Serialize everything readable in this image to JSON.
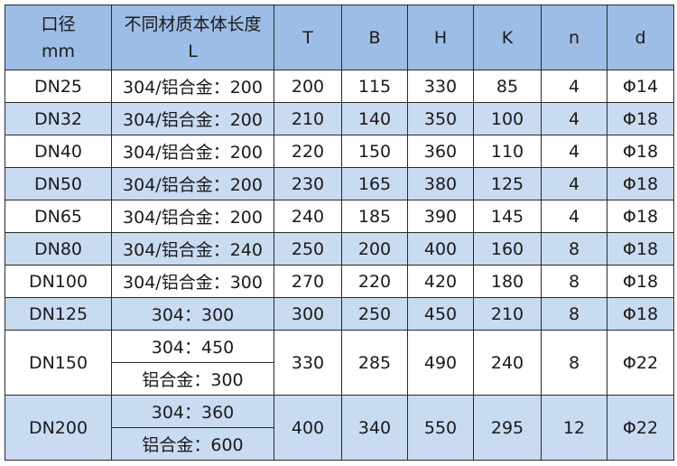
{
  "headers": [
    {
      "line1": "口径",
      "line2": "mm"
    },
    {
      "line1": "不同材质本体长度",
      "line2": "L"
    },
    {
      "line1": "T",
      "line2": ""
    },
    {
      "line1": "B",
      "line2": ""
    },
    {
      "line1": "H",
      "line2": ""
    },
    {
      "line1": "K",
      "line2": ""
    },
    {
      "line1": "n",
      "line2": ""
    },
    {
      "line1": "d",
      "line2": ""
    }
  ],
  "rows": [
    {
      "dn": "DN25",
      "L": [
        "304/铝合金：200"
      ],
      "T": "200",
      "B": "115",
      "H": "330",
      "K": "85",
      "n": "4",
      "d": "Φ14"
    },
    {
      "dn": "DN32",
      "L": [
        "304/铝合金：200"
      ],
      "T": "210",
      "B": "140",
      "H": "350",
      "K": "100",
      "n": "4",
      "d": "Φ18"
    },
    {
      "dn": "DN40",
      "L": [
        "304/铝合金：200"
      ],
      "T": "220",
      "B": "150",
      "H": "360",
      "K": "110",
      "n": "4",
      "d": "Φ18"
    },
    {
      "dn": "DN50",
      "L": [
        "304/铝合金：200"
      ],
      "T": "230",
      "B": "165",
      "H": "380",
      "K": "125",
      "n": "4",
      "d": "Φ18"
    },
    {
      "dn": "DN65",
      "L": [
        "304/铝合金：200"
      ],
      "T": "240",
      "B": "185",
      "H": "390",
      "K": "145",
      "n": "4",
      "d": "Φ18"
    },
    {
      "dn": "DN80",
      "L": [
        "304/铝合金：240"
      ],
      "T": "250",
      "B": "200",
      "H": "400",
      "K": "160",
      "n": "8",
      "d": "Φ18"
    },
    {
      "dn": "DN100",
      "L": [
        "304/铝合金：300"
      ],
      "T": "270",
      "B": "220",
      "H": "420",
      "K": "180",
      "n": "8",
      "d": "Φ18"
    },
    {
      "dn": "DN125",
      "L": [
        "304：300"
      ],
      "T": "300",
      "B": "250",
      "H": "450",
      "K": "210",
      "n": "8",
      "d": "Φ18"
    },
    {
      "dn": "DN150",
      "L": [
        "304：450",
        "铝合金：300"
      ],
      "T": "330",
      "B": "285",
      "H": "490",
      "K": "240",
      "n": "8",
      "d": "Φ22"
    },
    {
      "dn": "DN200",
      "L": [
        "304：360",
        "铝合金：600"
      ],
      "T": "400",
      "B": "340",
      "H": "550",
      "K": "295",
      "n": "12",
      "d": "Φ22"
    }
  ],
  "colors": {
    "header": "#9dbde6",
    "stripe": "#c9dbf1",
    "row": "#ffffff"
  }
}
